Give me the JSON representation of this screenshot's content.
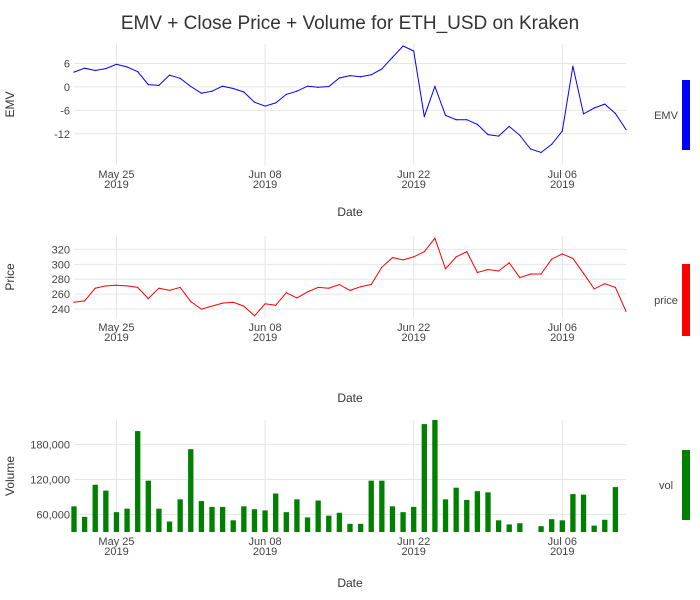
{
  "title": "EMV + Close Price + Volume for ETH_USD on Kraken",
  "chart_data": [
    {
      "type": "line",
      "ylabel": "EMV",
      "xlabel": "Date",
      "legend": "EMV",
      "color": "#0000ff",
      "ylim": [
        -20,
        11
      ],
      "yticks": [
        6,
        0,
        -6,
        -12
      ],
      "ytick_labels": [
        "6",
        "0",
        "-6",
        "-12"
      ],
      "x_start": "2019-05-21",
      "xticks": [
        {
          "date": "2019-05-25",
          "label1": "May 25",
          "label2": "2019"
        },
        {
          "date": "2019-06-08",
          "label1": "Jun 08",
          "label2": "2019"
        },
        {
          "date": "2019-06-22",
          "label1": "Jun 22",
          "label2": "2019"
        },
        {
          "date": "2019-07-06",
          "label1": "Jul 06",
          "label2": "2019"
        }
      ],
      "values": [
        3.8,
        4.8,
        4.2,
        4.7,
        5.8,
        5.1,
        3.9,
        0.6,
        0.4,
        3.0,
        2.2,
        0.1,
        -1.6,
        -1.1,
        0.2,
        -0.4,
        -1.3,
        -3.9,
        -4.9,
        -4.1,
        -1.9,
        -1.1,
        0.2,
        -0.1,
        0.1,
        2.3,
        2.9,
        2.6,
        3.1,
        4.6,
        7.6,
        10.5,
        9.2,
        -7.6,
        0.1,
        -7.3,
        -8.4,
        -8.4,
        -9.6,
        -12.2,
        -12.6,
        -10.1,
        -12.4,
        -15.9,
        -16.8,
        -14.7,
        -11.3,
        5.3,
        -6.9,
        -5.4,
        -4.4,
        -6.8,
        -10.9
      ]
    },
    {
      "type": "line",
      "ylabel": "Price",
      "xlabel": "Date",
      "legend": "price",
      "color": "#ff0000",
      "ylim": [
        228,
        338
      ],
      "yticks": [
        320,
        300,
        280,
        260,
        240
      ],
      "ytick_labels": [
        "320",
        "300",
        "280",
        "260",
        "240"
      ],
      "x_start": "2019-05-21",
      "xticks": [
        {
          "date": "2019-05-25",
          "label1": "May 25",
          "label2": "2019"
        },
        {
          "date": "2019-06-08",
          "label1": "Jun 08",
          "label2": "2019"
        },
        {
          "date": "2019-06-22",
          "label1": "Jun 22",
          "label2": "2019"
        },
        {
          "date": "2019-07-06",
          "label1": "Jul 06",
          "label2": "2019"
        }
      ],
      "values": [
        249,
        251,
        268,
        271,
        272,
        271,
        269,
        254,
        268,
        265,
        269,
        250,
        240,
        244,
        248,
        249,
        244,
        231,
        247,
        245,
        262,
        255,
        263,
        269,
        268,
        273,
        265,
        270,
        273,
        296,
        309,
        306,
        310,
        317,
        335,
        294,
        310,
        317,
        289,
        293,
        291,
        302,
        282,
        287,
        287,
        307,
        314,
        308,
        288,
        267,
        274,
        269,
        237
      ]
    },
    {
      "type": "bar",
      "ylabel": "Volume",
      "xlabel": "Date",
      "legend": "vol",
      "color": "#008000",
      "ylim": [
        30000,
        222000
      ],
      "yticks": [
        180000,
        120000,
        60000
      ],
      "ytick_labels": [
        "180,000",
        "120,000",
        "60,000"
      ],
      "x_start": "2019-05-21",
      "xticks": [
        {
          "date": "2019-05-25",
          "label1": "May 25",
          "label2": "2019"
        },
        {
          "date": "2019-06-08",
          "label1": "Jun 08",
          "label2": "2019"
        },
        {
          "date": "2019-06-22",
          "label1": "Jun 22",
          "label2": "2019"
        },
        {
          "date": "2019-07-06",
          "label1": "Jul 06",
          "label2": "2019"
        }
      ],
      "values": [
        74000,
        56000,
        111000,
        101000,
        64000,
        70000,
        203000,
        118000,
        70000,
        48000,
        86000,
        172000,
        83000,
        73000,
        73000,
        50000,
        74000,
        69000,
        67000,
        96000,
        64000,
        86000,
        55000,
        84000,
        58000,
        63000,
        44000,
        44000,
        118000,
        118000,
        74000,
        64000,
        73000,
        215000,
        222000,
        86000,
        106000,
        85000,
        100000,
        98000,
        50000,
        43000,
        45000,
        30000,
        40000,
        52000,
        50000,
        95000,
        94000,
        41000,
        51000,
        107000,
        28000
      ]
    }
  ]
}
